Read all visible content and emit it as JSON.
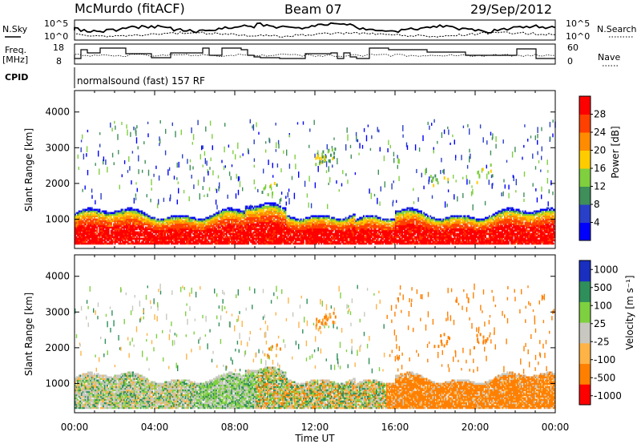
{
  "header": {
    "station": "McMurdo (fitACF)",
    "beam": "Beam 07",
    "date": "29/Sep/2012"
  },
  "labels": {
    "nsky": "N.Sky",
    "nsearch": "N.Search",
    "freq": "Freq.",
    "freq_unit": "[MHz]",
    "nave": "Nave",
    "cpid": "CPID",
    "cpid_value": "normalsound (fast) 157 RF",
    "xlabel": "Time UT",
    "ylabel": "Slant Range [km]"
  },
  "noise_ticks": [
    "10^5",
    "10^0"
  ],
  "freq_ticks": [
    "18",
    "8"
  ],
  "nave_ticks": [
    "60",
    "0"
  ],
  "colors": {
    "power": [
      "#0000ff",
      "#2a3fc7",
      "#3f8f5a",
      "#7fcf3f",
      "#ffcc00",
      "#ff8c00",
      "#ff4000",
      "#ff0000"
    ],
    "velocity": [
      "#1a2fc0",
      "#2f8f5a",
      "#7fd040",
      "#c8c8c0",
      "#ffb347",
      "#ff8000",
      "#ff0000"
    ]
  },
  "chart_data": [
    {
      "type": "heatmap",
      "name": "Power",
      "xlabel": "Time UT",
      "ylabel": "Slant Range [km]",
      "x_ticks": [
        "00:00",
        "04:00",
        "08:00",
        "12:00",
        "16:00",
        "20:00",
        "00:00"
      ],
      "xlim": [
        0,
        24
      ],
      "ylim": [
        180,
        4600
      ],
      "y_ticks": [
        1000,
        2000,
        3000,
        4000
      ],
      "colorbar_title": "Power [dB]",
      "colorbar_ticks": [
        4,
        8,
        12,
        16,
        20,
        24,
        28
      ]
    },
    {
      "type": "heatmap",
      "name": "Velocity",
      "xlabel": "Time UT",
      "ylabel": "Slant Range [km]",
      "x_ticks": [
        "00:00",
        "04:00",
        "08:00",
        "12:00",
        "16:00",
        "20:00",
        "00:00"
      ],
      "xlim": [
        0,
        24
      ],
      "ylim": [
        180,
        4600
      ],
      "y_ticks": [
        1000,
        2000,
        3000,
        4000
      ],
      "colorbar_title": "Velocity [m s⁻¹]",
      "colorbar_ticks": [
        1000,
        500,
        100,
        25,
        -25,
        -100,
        -500,
        -1000
      ]
    }
  ]
}
